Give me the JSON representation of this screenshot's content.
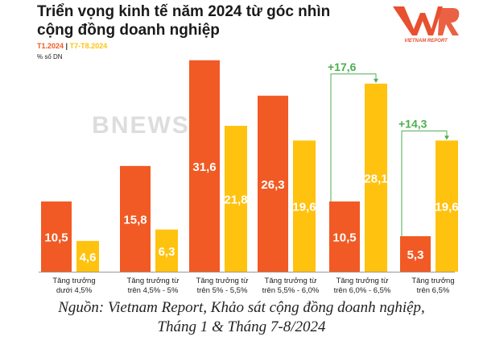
{
  "title": "Triển vọng kinh tế năm 2024 từ góc nhìn cộng đồng doanh nghiệp",
  "logo_text": "VNR",
  "logo_subtext": "VIETNAM REPORT",
  "watermark": "BNEWS",
  "source_line1": "Nguồn: Vietnam Report, Khảo sát cộng đồng doanh nghiệp,",
  "source_line2": "Tháng 1 & Tháng 7-8/2024",
  "colors": {
    "series1": "#f15a24",
    "series2": "#ffc20e",
    "annotation": "#4caf50"
  },
  "chart_data": {
    "type": "bar",
    "unit_label": "% số DN",
    "categories": [
      "Tăng trưởng dưới 4,5%",
      "Tăng trưởng từ trên 4,5% - 5%",
      "Tăng trưởng từ trên 5% - 5,5%",
      "Tăng trưởng từ trên 5,5% - 6,0%",
      "Tăng trưởng từ trên 6,0% - 6,5%",
      "Tăng trưởng trên 6,5%"
    ],
    "category_lines": [
      [
        "Tăng trưởng",
        "dưới 4,5%"
      ],
      [
        "Tăng trưởng từ",
        "trên 4,5% - 5%"
      ],
      [
        "Tăng trưởng từ",
        "trên 5% - 5,5%"
      ],
      [
        "Tăng trưởng từ",
        "trên 5,5% - 6,0%"
      ],
      [
        "Tăng trưởng từ",
        "trên 6,0% - 6,5%"
      ],
      [
        "Tăng trưởng",
        "trên 6,5%"
      ]
    ],
    "series": [
      {
        "name": "T1.2024",
        "values": [
          10.5,
          15.8,
          31.6,
          26.3,
          10.5,
          5.3
        ],
        "labels": [
          "10,5",
          "15,8",
          "31,6",
          "26,3",
          "10,5",
          "5,3"
        ]
      },
      {
        "name": "T7-T8.2024",
        "values": [
          4.6,
          6.3,
          21.8,
          19.6,
          28.1,
          19.6
        ],
        "labels": [
          "4,6",
          "6,3",
          "21,8",
          "19,6",
          "28,1",
          "19,6"
        ]
      }
    ],
    "annotations": [
      {
        "category_index": 4,
        "text": "+17,6"
      },
      {
        "category_index": 5,
        "text": "+14,3"
      }
    ],
    "ylim": [
      0,
      32
    ],
    "grid": false,
    "legend_placement": "top-left"
  }
}
